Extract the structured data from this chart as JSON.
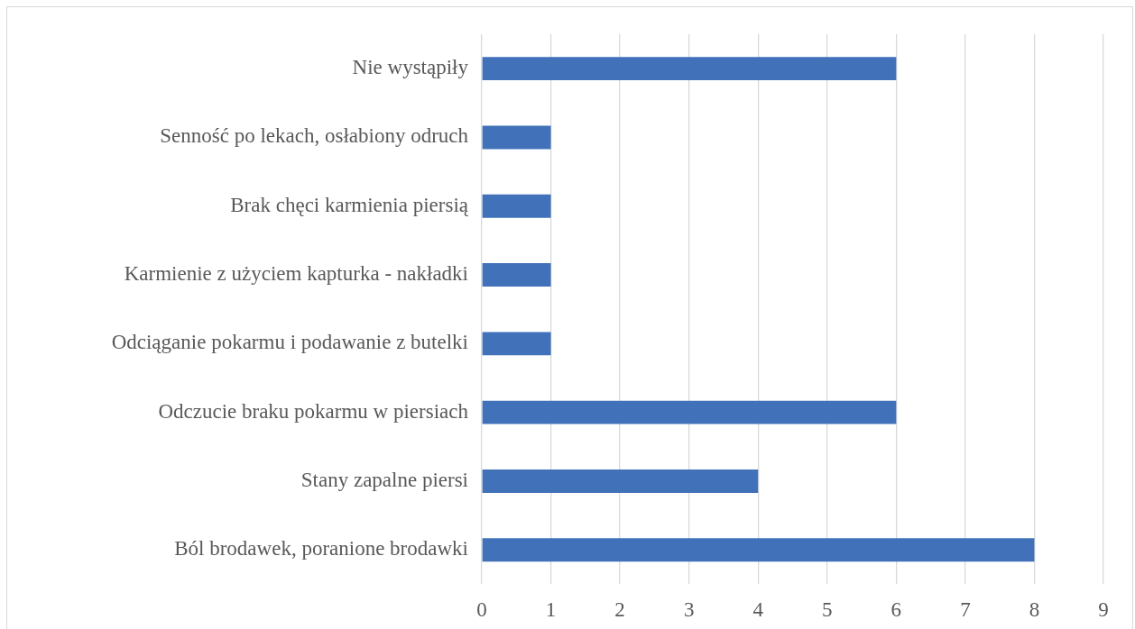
{
  "chart_data": {
    "type": "bar",
    "orientation": "horizontal",
    "categories": [
      "Nie wystąpiły",
      "Senność po lekach, osłabiony odruch",
      "Brak chęci karmienia piersią",
      "Karmienie z użyciem kapturka - nakładki",
      "Odciąganie pokarmu i podawanie z butelki",
      "Odczucie braku pokarmu w piersiach",
      "Stany zapalne piersi",
      "Ból brodawek, poranione brodawki"
    ],
    "values": [
      6,
      1,
      1,
      1,
      1,
      6,
      4,
      8
    ],
    "color": "#4171b9",
    "xlim": [
      0,
      9
    ],
    "xticks": [
      0,
      1,
      2,
      3,
      4,
      5,
      6,
      7,
      8,
      9
    ],
    "grid": "x"
  }
}
